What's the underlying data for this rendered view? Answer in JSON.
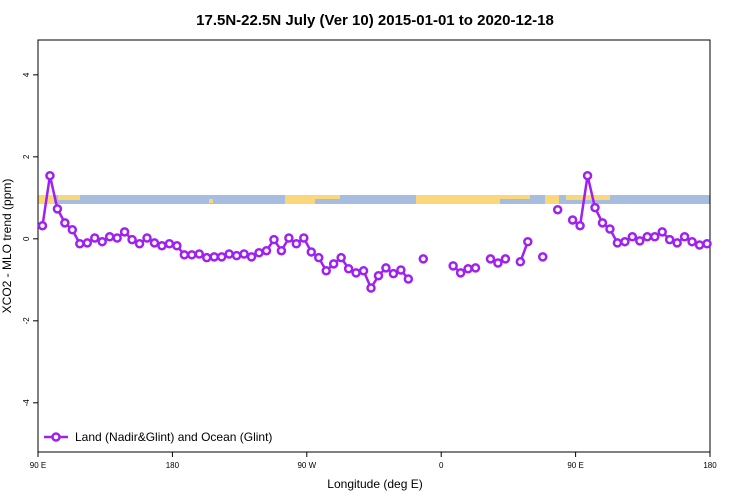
{
  "chart_data": {
    "type": "line",
    "title": "17.5N-22.5N July (Ver 10)   2015-01-01 to 2020-12-18",
    "x_label": "Longitude (deg E)",
    "y_label": "XCO2 - MLO trend (ppm)",
    "xlim": [
      90,
      540
    ],
    "ylim": [
      -5.2,
      4.85
    ],
    "xticks": [
      {
        "value": 90,
        "label": "90 E"
      },
      180,
      {
        "value": 270,
        "label": "90 W"
      },
      {
        "value": 360,
        "label": "0"
      },
      {
        "value": 450,
        "label": "90 E"
      },
      {
        "value": 540,
        "label": "180"
      }
    ],
    "yticks": [
      4,
      2,
      0,
      -2,
      -4
    ],
    "legend": "bottom-left",
    "x": [
      93,
      98,
      103,
      108,
      113,
      118,
      123,
      128,
      133,
      138,
      143,
      148,
      153,
      158,
      163,
      168,
      173,
      178,
      183,
      188,
      193,
      198,
      203,
      208,
      213,
      218,
      223,
      228,
      233,
      238,
      243,
      248,
      253,
      258,
      263,
      268,
      273,
      278,
      283,
      288,
      293,
      298,
      303,
      308,
      313,
      318,
      323,
      328,
      333,
      338,
      343,
      348,
      353,
      358,
      363,
      368,
      373,
      378,
      383,
      388,
      393,
      398,
      403,
      408,
      413,
      418,
      423,
      428,
      433,
      438,
      443,
      448,
      453,
      458,
      463,
      468,
      473,
      478,
      483,
      488,
      493,
      498,
      503,
      508,
      513,
      518,
      523,
      528,
      533,
      538
    ],
    "series": [
      {
        "name": "Land (Nadir&Glint) and Ocean (Glint)",
        "color": "#a020f0",
        "values": [
          0.32,
          1.54,
          0.73,
          0.39,
          0.22,
          -0.12,
          -0.1,
          0.02,
          -0.07,
          0.05,
          0.02,
          0.17,
          -0.02,
          -0.12,
          0.02,
          -0.1,
          -0.17,
          -0.12,
          -0.17,
          -0.39,
          -0.39,
          -0.37,
          -0.46,
          -0.44,
          -0.44,
          -0.37,
          -0.41,
          -0.37,
          -0.44,
          -0.34,
          -0.29,
          -0.02,
          -0.29,
          0.02,
          -0.12,
          0.02,
          -0.32,
          -0.46,
          -0.78,
          -0.61,
          -0.46,
          -0.73,
          -0.83,
          -0.78,
          -1.2,
          -0.9,
          -0.71,
          -0.85,
          -0.76,
          -0.98,
          null,
          -0.49,
          null,
          null,
          null,
          -0.66,
          -0.83,
          -0.73,
          -0.71,
          null,
          -0.49,
          -0.59,
          -0.49,
          null,
          -0.56,
          -0.07,
          null,
          -0.44,
          null,
          0.71,
          null,
          0.46,
          0.32,
          1.54,
          0.76,
          0.39,
          0.24,
          -0.1,
          -0.07,
          0.05,
          -0.05,
          0.05,
          0.05,
          0.17,
          -0.02,
          -0.1,
          0.05,
          -0.07,
          -0.15,
          -0.12
        ]
      }
    ]
  }
}
